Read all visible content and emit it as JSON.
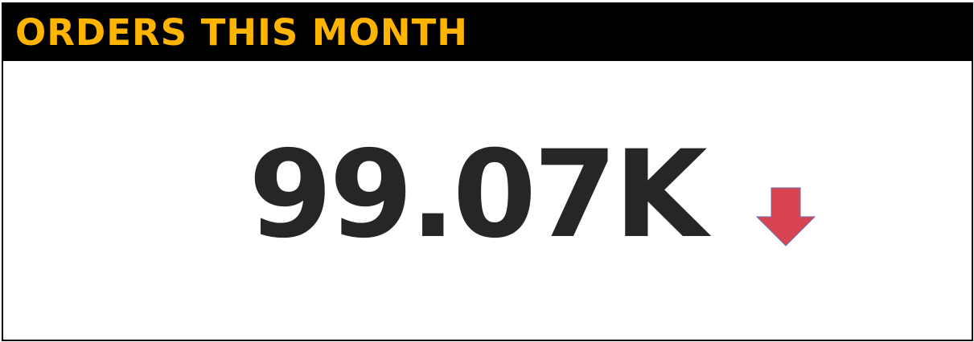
{
  "card": {
    "title": "ORDERS THIS MONTH",
    "value": "99.07K",
    "trend_icon": "arrow-down-icon",
    "colors": {
      "header_background": "#000000",
      "title": "#FFB400",
      "value": "#262626",
      "trend_down": "#D94452"
    }
  }
}
